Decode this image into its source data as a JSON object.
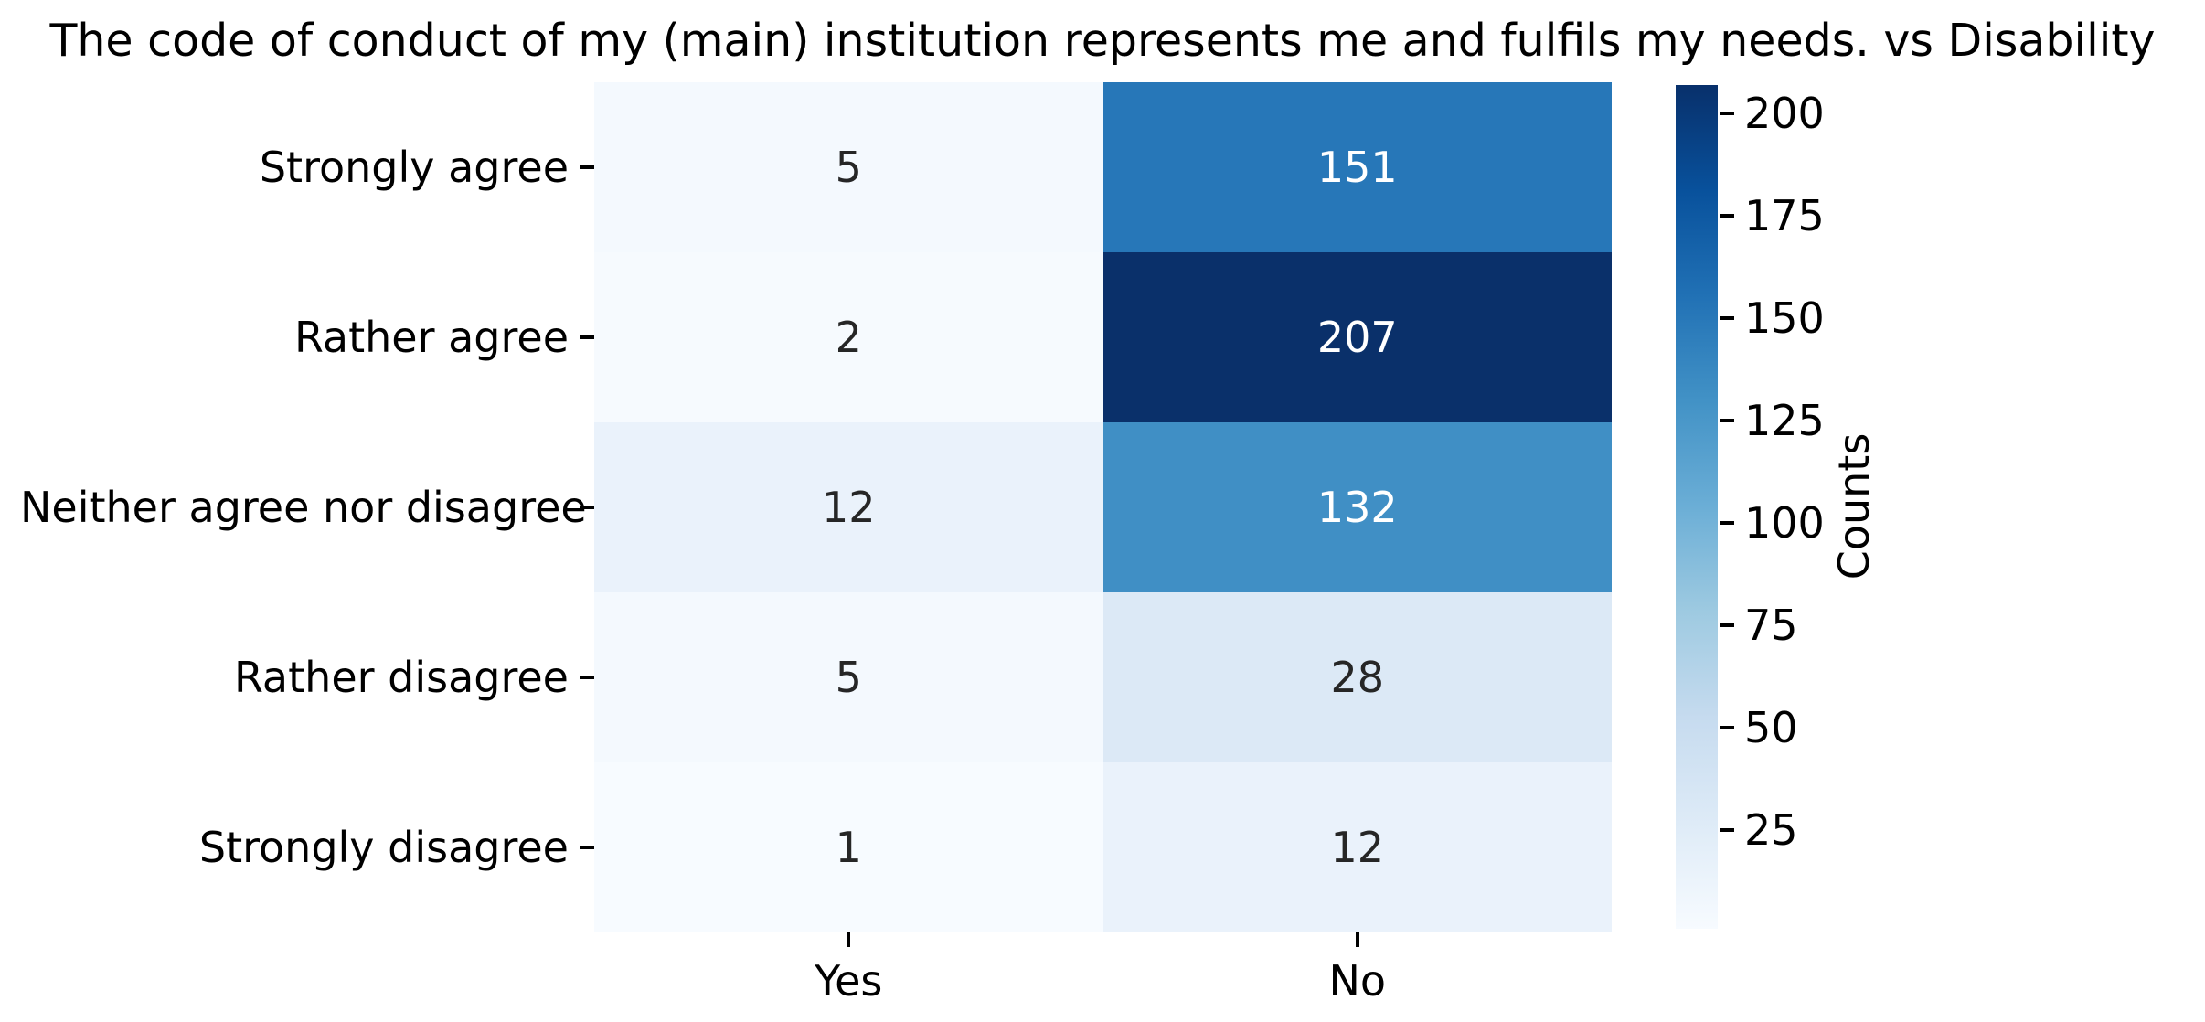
{
  "chart_data": {
    "type": "heatmap",
    "title": "The code of conduct of my (main) institution represents me and fulfils my needs. vs Disability",
    "x_categories": [
      "Yes",
      "No"
    ],
    "y_categories": [
      "Strongly agree",
      "Rather agree",
      "Neither agree nor disagree",
      "Rather disagree",
      "Strongly disagree"
    ],
    "values": [
      [
        5,
        151
      ],
      [
        2,
        207
      ],
      [
        12,
        132
      ],
      [
        5,
        28
      ],
      [
        1,
        12
      ]
    ],
    "cell_colors": [
      [
        "#f4f9fe",
        "#2777b8"
      ],
      [
        "#f6fafe",
        "#0a306a"
      ],
      [
        "#eaf2fb",
        "#408fc5"
      ],
      [
        "#f4f9fe",
        "#dce9f6"
      ],
      [
        "#f7fbff",
        "#eaf2fb"
      ]
    ],
    "cell_text_colors": [
      [
        "#262626",
        "#ffffff"
      ],
      [
        "#262626",
        "#ffffff"
      ],
      [
        "#262626",
        "#ffffff"
      ],
      [
        "#262626",
        "#262626"
      ],
      [
        "#262626",
        "#262626"
      ]
    ],
    "colormap": "Blues",
    "grid": false,
    "colorbar": {
      "label": "Counts",
      "position": "right",
      "vmin": 1,
      "vmax": 207,
      "ticks": [
        25,
        50,
        75,
        100,
        125,
        150,
        175,
        200
      ],
      "gradient_stops_bottom_to_top": [
        "#f7fbff",
        "#deebf7",
        "#c6dbef",
        "#9ecae1",
        "#6baed6",
        "#4292c6",
        "#2171b5",
        "#08519c",
        "#08306b"
      ]
    }
  }
}
